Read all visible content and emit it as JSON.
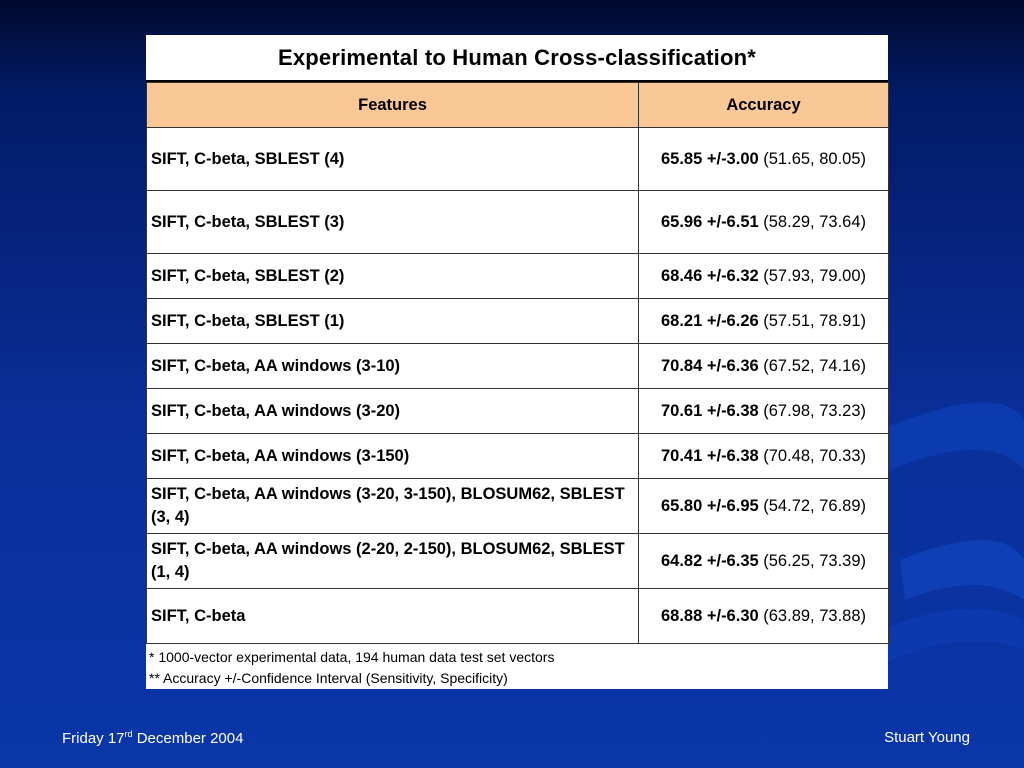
{
  "title": "Experimental to Human Cross-classification*",
  "columns": [
    "Features",
    "Accuracy"
  ],
  "rows": [
    {
      "feature": "SIFT, C-beta, SBLEST (4)",
      "acc_main": "65.85 +/-3.00",
      "acc_ci": "(51.65, 80.05)"
    },
    {
      "feature": "SIFT, C-beta, SBLEST (3)",
      "acc_main": "65.96 +/-6.51",
      "acc_ci": "(58.29, 73.64)"
    },
    {
      "feature": "SIFT, C-beta, SBLEST (2)",
      "acc_main": "68.46 +/-6.32",
      "acc_ci": "(57.93, 79.00)"
    },
    {
      "feature": "SIFT, C-beta, SBLEST (1)",
      "acc_main": "68.21 +/-6.26",
      "acc_ci": "(57.51, 78.91)"
    },
    {
      "feature": "SIFT, C-beta, AA windows (3-10)",
      "acc_main": "70.84 +/-6.36",
      "acc_ci": "(67.52, 74.16)"
    },
    {
      "feature": "SIFT, C-beta, AA windows (3-20)",
      "acc_main": "70.61 +/-6.38",
      "acc_ci": "(67.98, 73.23)"
    },
    {
      "feature": "SIFT, C-beta, AA windows (3-150)",
      "acc_main": "70.41 +/-6.38",
      "acc_ci": "(70.48, 70.33)"
    },
    {
      "feature": "SIFT, C-beta, AA windows (3-20, 3-150), BLOSUM62, SBLEST (3, 4)",
      "acc_main": "65.80 +/-6.95",
      "acc_ci": "(54.72, 76.89)"
    },
    {
      "feature": "SIFT, C-beta, AA windows (2-20, 2-150), BLOSUM62, SBLEST (1, 4)",
      "acc_main": "64.82 +/-6.35",
      "acc_ci": "(56.25, 73.39)"
    },
    {
      "feature": "SIFT, C-beta",
      "acc_main": "68.88 +/-6.30",
      "acc_ci": "(63.89, 73.88)"
    }
  ],
  "notes": [
    "* 1000-vector experimental data, 194 human data test set vectors",
    "** Accuracy +/-Confidence Interval (Sensitivity, Specificity)"
  ],
  "footer": {
    "date_prefix": "Friday 17",
    "date_sup": "rd",
    "date_suffix": " December 2004",
    "author": "Stuart Young"
  }
}
